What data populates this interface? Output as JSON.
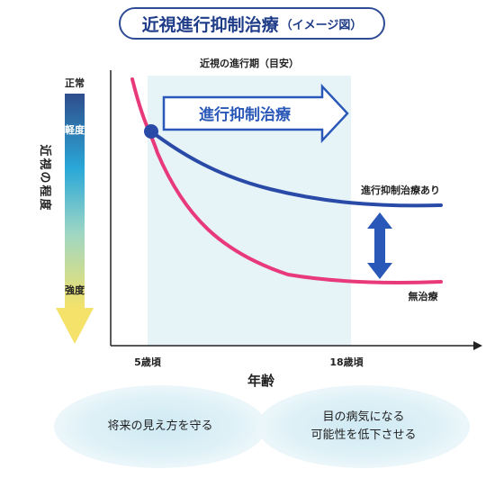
{
  "title": {
    "main": "近視進行抑制治療",
    "sub": "（イメージ図）"
  },
  "y_axis": {
    "label": "近視の程度",
    "levels": {
      "top": "正常",
      "mild": "軽度",
      "strong": "強度"
    }
  },
  "x_axis": {
    "label": "年齢",
    "ticks": {
      "start": "5歳頃",
      "end": "18歳頃"
    }
  },
  "period_label": "近視の進行期（目安）",
  "arrow_label": "進行抑制治療",
  "curves": {
    "treated": {
      "label": "進行抑制治療あり",
      "color": "#2a4aa8"
    },
    "untreated": {
      "label": "無治療",
      "color": "#e83a7a"
    }
  },
  "colors": {
    "title_border": "#2f4d94",
    "period_band": "#e6f4f8",
    "arrow_blue": "#2a58b8",
    "gradient": [
      "#2f4d8c",
      "#2aa8d8",
      "#9ed6c4",
      "#f4e26a"
    ]
  },
  "bottom_messages": {
    "left": [
      "将来の見え方を守る"
    ],
    "right": [
      "目の病気になる",
      "可能性を低下させる"
    ]
  }
}
